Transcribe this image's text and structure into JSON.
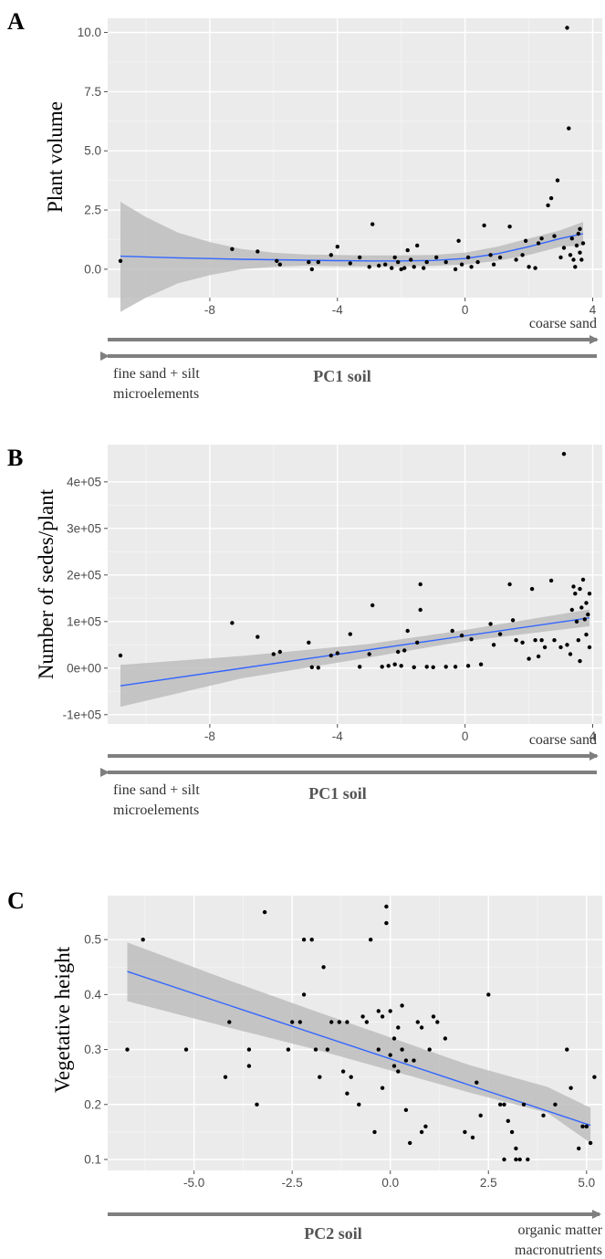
{
  "colors": {
    "panel_bg": "#ebebeb",
    "grid_major": "#ffffff",
    "grid_minor": "#f5f5f5",
    "ribbon": "#bdbdbd",
    "trend_line": "#3366ff",
    "points": "#000000",
    "arrow": "#7f7f7f"
  },
  "chart_data": [
    {
      "type": "scatter",
      "panel": "A",
      "ylabel": "Plant volume",
      "xlim": [
        -11.2,
        4.3
      ],
      "ylim": [
        -1.2,
        10.6
      ],
      "x_ticks": [
        -8,
        -4,
        0,
        4
      ],
      "x_tick_labels": [
        "-8",
        "-4",
        "0",
        "4"
      ],
      "y_ticks": [
        0,
        2.5,
        5,
        7.5,
        10
      ],
      "y_tick_labels": [
        "0.0",
        "2.5",
        "5.0",
        "7.5",
        "10.0"
      ],
      "arrow_labels": {
        "right": "coarse sand",
        "left": [
          "fine sand + silt",
          "microelements"
        ],
        "axis": "PC1 soil"
      },
      "grid": true,
      "points": [
        [
          -10.8,
          0.35
        ],
        [
          -7.3,
          0.85
        ],
        [
          -6.5,
          0.75
        ],
        [
          -5.9,
          0.35
        ],
        [
          -5.8,
          0.2
        ],
        [
          -4.9,
          0.3
        ],
        [
          -4.8,
          0.0
        ],
        [
          -4.6,
          0.3
        ],
        [
          -4.2,
          0.6
        ],
        [
          -4.0,
          0.95
        ],
        [
          -3.6,
          0.25
        ],
        [
          -3.3,
          0.5
        ],
        [
          -3.0,
          0.1
        ],
        [
          -2.9,
          1.9
        ],
        [
          -2.7,
          0.15
        ],
        [
          -2.5,
          0.2
        ],
        [
          -2.3,
          0.05
        ],
        [
          -2.2,
          0.5
        ],
        [
          -2.1,
          0.3
        ],
        [
          -2.0,
          0.0
        ],
        [
          -1.9,
          0.05
        ],
        [
          -1.8,
          0.8
        ],
        [
          -1.7,
          0.4
        ],
        [
          -1.6,
          0.1
        ],
        [
          -1.5,
          1.0
        ],
        [
          -1.3,
          0.05
        ],
        [
          -1.2,
          0.3
        ],
        [
          -0.9,
          0.5
        ],
        [
          -0.6,
          0.3
        ],
        [
          -0.3,
          0.0
        ],
        [
          -0.2,
          1.2
        ],
        [
          -0.1,
          0.2
        ],
        [
          0.1,
          0.5
        ],
        [
          0.2,
          0.1
        ],
        [
          0.4,
          0.3
        ],
        [
          0.6,
          1.85
        ],
        [
          0.8,
          0.6
        ],
        [
          0.9,
          0.2
        ],
        [
          1.1,
          0.5
        ],
        [
          1.4,
          1.8
        ],
        [
          1.6,
          0.4
        ],
        [
          1.8,
          0.6
        ],
        [
          1.9,
          1.2
        ],
        [
          2.0,
          0.1
        ],
        [
          2.2,
          0.05
        ],
        [
          2.3,
          1.1
        ],
        [
          2.4,
          1.3
        ],
        [
          2.6,
          2.7
        ],
        [
          2.7,
          3.0
        ],
        [
          2.8,
          1.4
        ],
        [
          2.9,
          3.75
        ],
        [
          3.0,
          0.5
        ],
        [
          3.1,
          0.9
        ],
        [
          3.2,
          10.2
        ],
        [
          3.25,
          5.95
        ],
        [
          3.3,
          0.6
        ],
        [
          3.35,
          1.3
        ],
        [
          3.4,
          0.4
        ],
        [
          3.45,
          0.1
        ],
        [
          3.5,
          1.0
        ],
        [
          3.55,
          1.5
        ],
        [
          3.6,
          0.7
        ],
        [
          3.6,
          1.7
        ],
        [
          3.65,
          0.4
        ],
        [
          3.7,
          1.1
        ]
      ],
      "trend": {
        "x": [
          -10.8,
          -10,
          -9,
          -8,
          -7,
          -6,
          -5,
          -4,
          -3,
          -2,
          -1,
          0,
          1,
          2,
          3,
          3.7
        ],
        "y": [
          0.55,
          0.52,
          0.48,
          0.45,
          0.42,
          0.4,
          0.38,
          0.36,
          0.35,
          0.35,
          0.37,
          0.45,
          0.65,
          0.95,
          1.3,
          1.5
        ],
        "lower": [
          -1.8,
          -1.2,
          -0.6,
          -0.25,
          0.0,
          0.1,
          0.15,
          0.12,
          0.12,
          0.12,
          0.14,
          0.2,
          0.35,
          0.6,
          0.95,
          1.0
        ],
        "upper": [
          2.85,
          2.2,
          1.55,
          1.15,
          0.85,
          0.7,
          0.62,
          0.6,
          0.58,
          0.58,
          0.6,
          0.7,
          0.95,
          1.3,
          1.65,
          2.0
        ]
      }
    },
    {
      "type": "scatter",
      "panel": "B",
      "ylabel": "Number of sedes/plant",
      "xlim": [
        -11.2,
        4.3
      ],
      "ylim": [
        -120000,
        480000
      ],
      "x_ticks": [
        -8,
        -4,
        0,
        4
      ],
      "x_tick_labels": [
        "-8",
        "-4",
        "0",
        "4"
      ],
      "y_ticks": [
        -100000,
        0,
        100000,
        200000,
        300000,
        400000
      ],
      "y_tick_labels": [
        "-1e+05",
        "0e+00",
        "1e+05",
        "2e+05",
        "3e+05",
        "4e+05"
      ],
      "arrow_labels": {
        "right": "coarse sand",
        "left": [
          "fine sand + silt",
          "microelements"
        ],
        "axis": "PC1 soil"
      },
      "grid": true,
      "points": [
        [
          -10.8,
          27000
        ],
        [
          -7.3,
          97000
        ],
        [
          -6.5,
          67000
        ],
        [
          -6.0,
          30000
        ],
        [
          -5.8,
          35000
        ],
        [
          -4.9,
          55000
        ],
        [
          -4.8,
          2000
        ],
        [
          -4.6,
          1000
        ],
        [
          -4.2,
          27000
        ],
        [
          -4.0,
          32000
        ],
        [
          -3.6,
          73000
        ],
        [
          -3.3,
          3000
        ],
        [
          -3.0,
          30000
        ],
        [
          -2.9,
          135000
        ],
        [
          -2.6,
          3000
        ],
        [
          -2.4,
          5000
        ],
        [
          -2.2,
          8000
        ],
        [
          -2.1,
          35000
        ],
        [
          -2.0,
          5000
        ],
        [
          -1.9,
          38000
        ],
        [
          -1.8,
          80000
        ],
        [
          -1.6,
          2000
        ],
        [
          -1.5,
          55000
        ],
        [
          -1.4,
          180000
        ],
        [
          -1.4,
          125000
        ],
        [
          -1.2,
          3000
        ],
        [
          -1.0,
          2000
        ],
        [
          -0.6,
          3000
        ],
        [
          -0.4,
          80000
        ],
        [
          -0.3,
          3000
        ],
        [
          -0.1,
          70000
        ],
        [
          0.1,
          5000
        ],
        [
          0.2,
          62000
        ],
        [
          0.5,
          8000
        ],
        [
          0.8,
          95000
        ],
        [
          0.9,
          50000
        ],
        [
          1.1,
          73000
        ],
        [
          1.4,
          180000
        ],
        [
          1.5,
          103000
        ],
        [
          1.6,
          60000
        ],
        [
          1.8,
          55000
        ],
        [
          2.0,
          20000
        ],
        [
          2.1,
          170000
        ],
        [
          2.2,
          60000
        ],
        [
          2.3,
          25000
        ],
        [
          2.4,
          60000
        ],
        [
          2.5,
          45000
        ],
        [
          2.7,
          188000
        ],
        [
          2.8,
          60000
        ],
        [
          3.0,
          45000
        ],
        [
          3.1,
          460000
        ],
        [
          3.2,
          50000
        ],
        [
          3.3,
          30000
        ],
        [
          3.35,
          125000
        ],
        [
          3.4,
          175000
        ],
        [
          3.45,
          160000
        ],
        [
          3.5,
          100000
        ],
        [
          3.55,
          60000
        ],
        [
          3.6,
          15000
        ],
        [
          3.6,
          170000
        ],
        [
          3.65,
          130000
        ],
        [
          3.7,
          190000
        ],
        [
          3.75,
          105000
        ],
        [
          3.8,
          140000
        ],
        [
          3.8,
          72000
        ],
        [
          3.85,
          115000
        ],
        [
          3.9,
          45000
        ],
        [
          3.9,
          160000
        ]
      ],
      "trend": {
        "x": [
          -10.8,
          3.9
        ],
        "y": [
          -38000,
          108000
        ],
        "lower": [
          -83000,
          90000
        ],
        "upper": [
          7000,
          126000
        ],
        "mid_band": {
          "x": [
            -10.8,
            -7,
            -3,
            0,
            3.9
          ],
          "lower": [
            -83000,
            -22000,
            23000,
            58000,
            90000
          ],
          "upper": [
            7000,
            26000,
            52000,
            82000,
            126000
          ]
        }
      }
    },
    {
      "type": "scatter",
      "panel": "C",
      "ylabel": "Vegetative height",
      "xlim": [
        -7.2,
        5.4
      ],
      "ylim": [
        0.08,
        0.58
      ],
      "x_ticks": [
        -5,
        -2.5,
        0,
        2.5,
        5
      ],
      "x_tick_labels": [
        "-5.0",
        "-2.5",
        "0.0",
        "2.5",
        "5.0"
      ],
      "y_ticks": [
        0.1,
        0.2,
        0.3,
        0.4,
        0.5
      ],
      "y_tick_labels": [
        "0.1",
        "0.2",
        "0.3",
        "0.4",
        "0.5"
      ],
      "arrow_labels": {
        "right": [
          "organic matter",
          "macronutrients"
        ],
        "axis": "PC2 soil"
      },
      "grid": true,
      "points": [
        [
          -6.7,
          0.3
        ],
        [
          -6.3,
          0.5
        ],
        [
          -5.2,
          0.3
        ],
        [
          -4.2,
          0.25
        ],
        [
          -4.1,
          0.35
        ],
        [
          -3.6,
          0.27
        ],
        [
          -3.6,
          0.3
        ],
        [
          -3.4,
          0.2
        ],
        [
          -3.2,
          0.55
        ],
        [
          -2.6,
          0.3
        ],
        [
          -2.5,
          0.35
        ],
        [
          -2.3,
          0.35
        ],
        [
          -2.2,
          0.5
        ],
        [
          -2.2,
          0.4
        ],
        [
          -2.0,
          0.5
        ],
        [
          -1.9,
          0.3
        ],
        [
          -1.8,
          0.25
        ],
        [
          -1.7,
          0.45
        ],
        [
          -1.6,
          0.3
        ],
        [
          -1.5,
          0.35
        ],
        [
          -1.3,
          0.35
        ],
        [
          -1.2,
          0.26
        ],
        [
          -1.1,
          0.35
        ],
        [
          -1.1,
          0.22
        ],
        [
          -1.0,
          0.25
        ],
        [
          -0.8,
          0.2
        ],
        [
          -0.7,
          0.36
        ],
        [
          -0.6,
          0.35
        ],
        [
          -0.5,
          0.5
        ],
        [
          -0.4,
          0.15
        ],
        [
          -0.3,
          0.37
        ],
        [
          -0.3,
          0.3
        ],
        [
          -0.2,
          0.23
        ],
        [
          -0.2,
          0.36
        ],
        [
          -0.1,
          0.53
        ],
        [
          -0.1,
          0.56
        ],
        [
          0.0,
          0.37
        ],
        [
          0.0,
          0.29
        ],
        [
          0.1,
          0.32
        ],
        [
          0.1,
          0.27
        ],
        [
          0.2,
          0.34
        ],
        [
          0.2,
          0.26
        ],
        [
          0.3,
          0.3
        ],
        [
          0.3,
          0.38
        ],
        [
          0.4,
          0.19
        ],
        [
          0.4,
          0.28
        ],
        [
          0.5,
          0.13
        ],
        [
          0.6,
          0.28
        ],
        [
          0.7,
          0.35
        ],
        [
          0.8,
          0.15
        ],
        [
          0.8,
          0.34
        ],
        [
          0.9,
          0.16
        ],
        [
          1.0,
          0.3
        ],
        [
          1.1,
          0.36
        ],
        [
          1.2,
          0.35
        ],
        [
          1.4,
          0.32
        ],
        [
          1.9,
          0.15
        ],
        [
          2.1,
          0.14
        ],
        [
          2.2,
          0.24
        ],
        [
          2.3,
          0.18
        ],
        [
          2.5,
          0.4
        ],
        [
          2.8,
          0.2
        ],
        [
          2.9,
          0.2
        ],
        [
          2.9,
          0.1
        ],
        [
          3.0,
          0.17
        ],
        [
          3.1,
          0.15
        ],
        [
          3.2,
          0.12
        ],
        [
          3.2,
          0.1
        ],
        [
          3.3,
          0.1
        ],
        [
          3.4,
          0.2
        ],
        [
          3.5,
          0.1
        ],
        [
          3.9,
          0.18
        ],
        [
          4.2,
          0.2
        ],
        [
          4.5,
          0.3
        ],
        [
          4.6,
          0.23
        ],
        [
          4.8,
          0.12
        ],
        [
          4.9,
          0.16
        ],
        [
          5.0,
          0.16
        ],
        [
          5.1,
          0.13
        ],
        [
          5.2,
          0.25
        ]
      ],
      "trend": {
        "x": [
          -6.7,
          5.1
        ],
        "y": [
          0.442,
          0.162
        ],
        "band_x": [
          -6.7,
          -4,
          -2,
          0,
          2,
          4,
          5.1
        ],
        "band_lower": [
          0.388,
          0.338,
          0.302,
          0.262,
          0.222,
          0.185,
          0.13
        ],
        "band_upper": [
          0.495,
          0.423,
          0.372,
          0.322,
          0.272,
          0.232,
          0.194
        ]
      }
    }
  ],
  "panels": {
    "A": {
      "letter": "A",
      "ylabel": "Plant volume",
      "right_label": "coarse sand",
      "left_label_1": "fine sand + silt",
      "left_label_2": "microelements",
      "axis_title": "PC1 soil"
    },
    "B": {
      "letter": "B",
      "ylabel": "Number of sedes/plant",
      "right_label": "coarse sand",
      "left_label_1": "fine sand + silt",
      "left_label_2": "microelements",
      "axis_title": "PC1 soil"
    },
    "C": {
      "letter": "C",
      "ylabel": "Vegetative height",
      "right_label_1": "organic matter",
      "right_label_2": "macronutrients",
      "axis_title": "PC2 soil"
    }
  }
}
